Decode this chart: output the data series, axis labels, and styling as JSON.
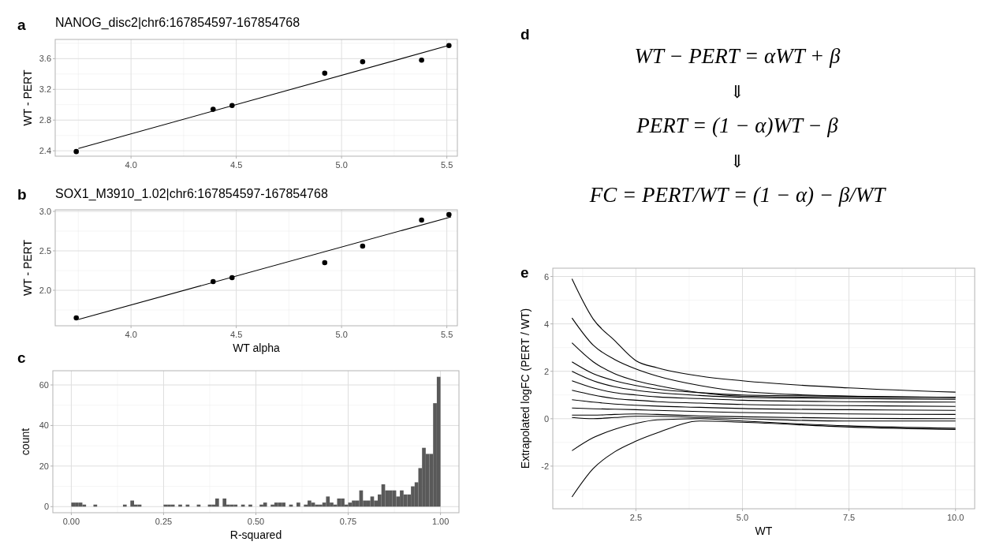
{
  "chart_data": [
    {
      "type": "scatter",
      "title": "NANOG_disc2|chr6:167854597-167854768",
      "ylabel": "WT - PERT",
      "annotations": [
        "a"
      ],
      "grid": true,
      "xlim": [
        3.64,
        5.55
      ],
      "xticks": [
        {
          "value": 4,
          "label": "4.0"
        },
        4.5,
        {
          "value": 5,
          "label": "5.0"
        },
        5.5
      ],
      "ylim": [
        2.33,
        3.85
      ],
      "yticks": [
        2.4,
        2.8,
        3.2,
        3.6
      ],
      "series": [
        {
          "type": "scatter",
          "marker": "circle",
          "color": "#000000",
          "x": [
            3.74,
            4.39,
            4.48,
            4.92,
            5.1,
            5.38,
            5.51
          ],
          "values": [
            2.39,
            2.94,
            2.99,
            3.41,
            3.56,
            3.58,
            3.77
          ]
        },
        {
          "type": "line",
          "color": "#000000",
          "x": [
            3.75,
            5.52
          ],
          "values": [
            2.43,
            3.78
          ]
        }
      ]
    },
    {
      "type": "scatter",
      "title": "SOX1_M3910_1.02|chr6:167854597-167854768",
      "xlabel": "WT alpha",
      "ylabel": "WT - PERT",
      "annotations": [
        "b"
      ],
      "grid": true,
      "xlim": [
        3.64,
        5.55
      ],
      "xticks": [
        {
          "value": 4,
          "label": "4.0"
        },
        4.5,
        {
          "value": 5,
          "label": "5.0"
        },
        5.5
      ],
      "ylim": [
        1.55,
        3.02
      ],
      "yticks": [
        {
          "value": 2,
          "label": "2.0"
        },
        2.5,
        {
          "value": 3,
          "label": "3.0"
        }
      ],
      "series": [
        {
          "type": "scatter",
          "marker": "circle",
          "color": "#000000",
          "x": [
            3.74,
            4.39,
            4.48,
            4.92,
            5.1,
            5.38,
            5.51
          ],
          "values": [
            1.65,
            2.11,
            2.16,
            2.35,
            2.56,
            2.89,
            2.96
          ]
        },
        {
          "type": "line",
          "color": "#000000",
          "x": [
            3.75,
            5.52
          ],
          "values": [
            1.63,
            2.93
          ]
        }
      ]
    },
    {
      "type": "histogram",
      "xlabel": "R-squared",
      "ylabel": "count",
      "annotations": [
        "c"
      ],
      "grid": true,
      "color": "#595959",
      "xlim": [
        -0.05,
        1.05
      ],
      "xticks": [
        {
          "value": 0,
          "label": "0.00"
        },
        0.25,
        {
          "value": 0.5,
          "label": "0.50"
        },
        0.75,
        {
          "value": 1,
          "label": "1.00"
        }
      ],
      "ylim": [
        -3,
        67
      ],
      "yticks": [
        0,
        20,
        40,
        60
      ],
      "bins": [
        0,
        0.01,
        0.02,
        0.03,
        0.04,
        0.05,
        0.06,
        0.07,
        0.08,
        0.09,
        0.1,
        0.11,
        0.12,
        0.13,
        0.14,
        0.15,
        0.16,
        0.17,
        0.18,
        0.19,
        0.2,
        0.21,
        0.22,
        0.23,
        0.24,
        0.25,
        0.26,
        0.27,
        0.28,
        0.29,
        0.3,
        0.31,
        0.32,
        0.33,
        0.34,
        0.35,
        0.36,
        0.37,
        0.38,
        0.39,
        0.4,
        0.41,
        0.42,
        0.43,
        0.44,
        0.45,
        0.46,
        0.47,
        0.48,
        0.49,
        0.5,
        0.51,
        0.52,
        0.53,
        0.54,
        0.55,
        0.56,
        0.57,
        0.58,
        0.59,
        0.6,
        0.61,
        0.62,
        0.63,
        0.64,
        0.65,
        0.66,
        0.67,
        0.68,
        0.69,
        0.7,
        0.71,
        0.72,
        0.73,
        0.74,
        0.75,
        0.76,
        0.77,
        0.78,
        0.79,
        0.8,
        0.81,
        0.82,
        0.83,
        0.84,
        0.85,
        0.86,
        0.87,
        0.88,
        0.89,
        0.9,
        0.91,
        0.92,
        0.93,
        0.94,
        0.95,
        0.96,
        0.97,
        0.98,
        0.99,
        1
      ],
      "values": [
        2,
        2,
        2,
        1,
        0,
        0,
        1,
        0,
        0,
        0,
        0,
        0,
        0,
        0,
        1,
        0,
        3,
        1,
        1,
        0,
        0,
        0,
        0,
        0,
        0,
        1,
        1,
        1,
        0,
        1,
        0,
        1,
        0,
        0,
        1,
        0,
        0,
        1,
        1,
        4,
        0,
        4,
        1,
        1,
        1,
        0,
        1,
        0,
        1,
        0,
        0,
        1,
        2,
        0,
        1,
        2,
        2,
        2,
        0,
        1,
        0,
        2,
        0,
        1,
        3,
        2,
        1,
        1,
        2,
        5,
        2,
        1,
        4,
        4,
        1,
        2,
        3,
        3,
        8,
        3,
        3,
        5,
        3,
        6,
        11,
        8,
        8,
        8,
        5,
        8,
        6,
        6,
        10,
        12,
        19,
        29,
        26,
        26,
        51,
        64
      ]
    },
    {
      "type": "other",
      "annotations": [
        "d",
        "WT − PERT = αWT + β",
        "⇓",
        "PERT = (1 − α)WT − β",
        "⇓",
        "FC = PERT/WT = (1 − α) − β/WT"
      ]
    },
    {
      "type": "line",
      "xlabel": "WT",
      "ylabel": "Extrapolated logFC (PERT / WT)",
      "annotations": [
        "e"
      ],
      "grid": true,
      "xlim": [
        0.55,
        10.45
      ],
      "xticks": [
        2.5,
        {
          "value": 5,
          "label": "5.0"
        },
        7.5,
        {
          "value": 10,
          "label": "10.0"
        }
      ],
      "ylim": [
        -3.8,
        6.35
      ],
      "yticks": [
        -2,
        0,
        2,
        4,
        6
      ],
      "x": [
        1,
        1.5,
        2,
        2.5,
        3,
        4,
        5,
        7.5,
        10
      ],
      "series": [
        {
          "color": "#000000",
          "values": [
            2.4,
            1.9,
            1.6,
            1.4,
            1.25,
            1.1,
            1.0,
            0.95,
            0.9
          ]
        },
        {
          "color": "#000000",
          "values": [
            2.0,
            1.6,
            1.35,
            1.2,
            1.1,
            0.98,
            0.9,
            0.85,
            0.82
          ]
        },
        {
          "color": "#000000",
          "values": [
            1.6,
            1.3,
            1.1,
            1.0,
            0.92,
            0.85,
            0.78,
            0.72,
            0.7
          ]
        },
        {
          "color": "#000000",
          "values": [
            1.2,
            1.0,
            0.85,
            0.78,
            0.72,
            0.66,
            0.6,
            0.55,
            0.52
          ]
        },
        {
          "color": "#000000",
          "values": [
            0.8,
            0.7,
            0.62,
            0.57,
            0.53,
            0.48,
            0.43,
            0.38,
            0.35
          ]
        },
        {
          "color": "#000000",
          "values": [
            0.45,
            0.42,
            0.4,
            0.38,
            0.35,
            0.3,
            0.26,
            0.2,
            0.18
          ]
        },
        {
          "color": "#000000",
          "values": [
            0.15,
            0.15,
            0.18,
            0.2,
            0.18,
            0.12,
            0.08,
            0.02,
            0.0
          ]
        },
        {
          "color": "#000000",
          "values": [
            0.05,
            0.0,
            0.05,
            0.1,
            0.1,
            0.05,
            0,
            -0.1,
            -0.1
          ]
        },
        {
          "color": "#000000",
          "values": [
            5.9,
            4.2,
            3.3,
            2.45,
            2.15,
            1.8,
            1.6,
            1.3,
            1.12
          ]
        },
        {
          "color": "#000000",
          "values": [
            4.25,
            3.1,
            2.5,
            2.1,
            1.8,
            1.4,
            1.15,
            0.95,
            0.9
          ]
        },
        {
          "color": "#000000",
          "values": [
            3.2,
            2.4,
            1.9,
            1.6,
            1.4,
            1.1,
            0.95,
            0.9,
            0.9
          ]
        },
        {
          "color": "#000000",
          "values": [
            -1.35,
            -0.8,
            -0.45,
            -0.2,
            -0.05,
            0.0,
            -0.1,
            -0.3,
            -0.4
          ]
        },
        {
          "color": "#000000",
          "values": [
            -3.3,
            -2.1,
            -1.4,
            -0.95,
            -0.6,
            -0.1,
            -0.15,
            -0.35,
            -0.45
          ]
        }
      ]
    }
  ]
}
